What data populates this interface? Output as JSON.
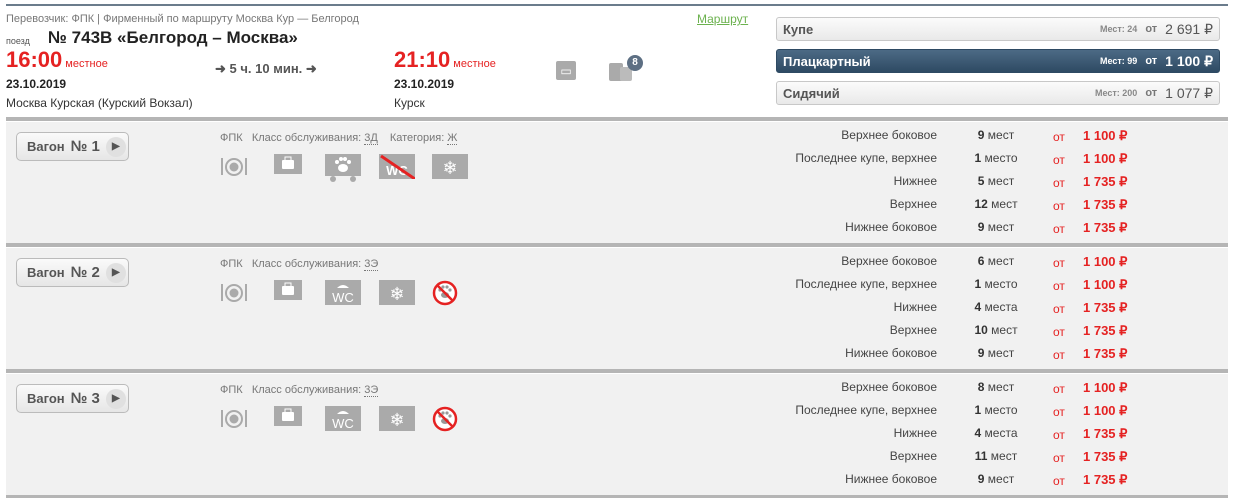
{
  "header": {
    "carrier": "Перевозчик: ФПК | Фирменный   по маршруту Москва Кур — Белгород",
    "route_link": "Маршрут",
    "train_label": "поезд",
    "train_title": "№ 743В «Белгород – Москва»",
    "departure": {
      "time": "16:00",
      "tz": "местное",
      "date": "23.10.2019",
      "station": "Москва Курская (Курский Вокзал)"
    },
    "duration": "5 ч. 10 мин.",
    "arrival": {
      "time": "21:10",
      "tz": "местное",
      "date": "23.10.2019",
      "station": "Курск"
    },
    "luggage_badge": "8"
  },
  "classes": [
    {
      "name": "Купе",
      "seats": "Мест: 24",
      "from": "от",
      "price": "2 691 ₽",
      "active": false
    },
    {
      "name": "Плацкартный",
      "seats": "Мест: 99",
      "from": "от",
      "price": "1 100 ₽",
      "active": true
    },
    {
      "name": "Сидячий",
      "seats": "Мест: 200",
      "from": "от",
      "price": "1 077 ₽",
      "active": false
    }
  ],
  "cars": [
    {
      "label": "Вагон",
      "num": "№ 1",
      "carrier": "ФПК",
      "service_label": "Класс обслуживания:",
      "service": "3Д",
      "category_label": "Категория:",
      "category": "Ж",
      "icons": [
        "food-icon",
        "luggage-icon",
        "pets-allowed-icon",
        "no-wc-icon",
        "air-conditioning-icon"
      ],
      "rows": [
        {
          "type": "Верхнее боковое",
          "count": "9",
          "unit": "мест",
          "from": "от",
          "price": "1 100 ₽"
        },
        {
          "type": "Последнее купе, верхнее",
          "count": "1",
          "unit": "место",
          "from": "от",
          "price": "1 100 ₽"
        },
        {
          "type": "Нижнее",
          "count": "5",
          "unit": "мест",
          "from": "от",
          "price": "1 735 ₽"
        },
        {
          "type": "Верхнее",
          "count": "12",
          "unit": "мест",
          "from": "от",
          "price": "1 735 ₽"
        },
        {
          "type": "Нижнее боковое",
          "count": "9",
          "unit": "мест",
          "from": "от",
          "price": "1 735 ₽"
        }
      ]
    },
    {
      "label": "Вагон",
      "num": "№ 2",
      "carrier": "ФПК",
      "service_label": "Класс обслуживания:",
      "service": "3Э",
      "icons": [
        "food-icon",
        "luggage-icon",
        "wc-icon",
        "air-conditioning-icon",
        "no-pets-icon"
      ],
      "rows": [
        {
          "type": "Верхнее боковое",
          "count": "6",
          "unit": "мест",
          "from": "от",
          "price": "1 100 ₽"
        },
        {
          "type": "Последнее купе, верхнее",
          "count": "1",
          "unit": "место",
          "from": "от",
          "price": "1 100 ₽"
        },
        {
          "type": "Нижнее",
          "count": "4",
          "unit": "места",
          "from": "от",
          "price": "1 735 ₽"
        },
        {
          "type": "Верхнее",
          "count": "10",
          "unit": "мест",
          "from": "от",
          "price": "1 735 ₽"
        },
        {
          "type": "Нижнее боковое",
          "count": "9",
          "unit": "мест",
          "from": "от",
          "price": "1 735 ₽"
        }
      ]
    },
    {
      "label": "Вагон",
      "num": "№ 3",
      "carrier": "ФПК",
      "service_label": "Класс обслуживания:",
      "service": "3Э",
      "icons": [
        "food-icon",
        "luggage-icon",
        "wc-icon",
        "air-conditioning-icon",
        "no-pets-icon"
      ],
      "rows": [
        {
          "type": "Верхнее боковое",
          "count": "8",
          "unit": "мест",
          "from": "от",
          "price": "1 100 ₽"
        },
        {
          "type": "Последнее купе, верхнее",
          "count": "1",
          "unit": "место",
          "from": "от",
          "price": "1 100 ₽"
        },
        {
          "type": "Нижнее",
          "count": "4",
          "unit": "места",
          "from": "от",
          "price": "1 735 ₽"
        },
        {
          "type": "Верхнее",
          "count": "11",
          "unit": "мест",
          "from": "от",
          "price": "1 735 ₽"
        },
        {
          "type": "Нижнее боковое",
          "count": "9",
          "unit": "мест",
          "from": "от",
          "price": "1 735 ₽"
        }
      ]
    }
  ],
  "colors": {
    "accent_red": "#e52222",
    "active_class": "#3a5670",
    "link_green": "#6cb24f"
  }
}
